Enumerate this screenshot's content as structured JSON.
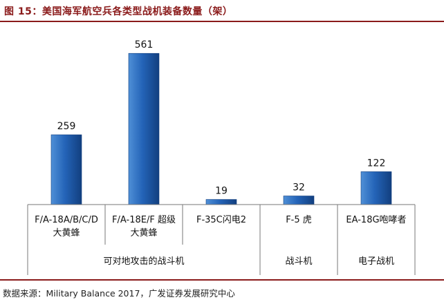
{
  "figure": {
    "title": "图 15：美国海军航空兵各类型战机装备数量（架）",
    "source": "数据来源：Military Balance 2017，广发证券发展研究中心"
  },
  "chart_data": {
    "type": "bar",
    "title": "图 15：美国海军航空兵各类型战机装备数量（架）",
    "unit": "架",
    "categories": [
      [
        "F/A-18A/B/C/D",
        "大黄蜂"
      ],
      [
        "F/A-18E/F 超级",
        "大黄蜂"
      ],
      [
        "F-35C闪电2"
      ],
      [
        "F-5 虎"
      ],
      [
        "EA-18G咆哮者"
      ]
    ],
    "values": [
      259,
      561,
      19,
      32,
      122
    ],
    "groups": [
      {
        "label": "可对地攻击的战斗机",
        "count": 3
      },
      {
        "label": "战斗机",
        "count": 1
      },
      {
        "label": "电子战机",
        "count": 1
      }
    ],
    "ylim": [
      0,
      600
    ],
    "grid": false,
    "legend": false,
    "colors": {
      "bar_light": "#4f8fd6",
      "bar_mid": "#2464b8",
      "bar_dark": "#123f7f",
      "axis": "#777777",
      "label_text": "#111111",
      "title": "#8a1a1a"
    }
  }
}
